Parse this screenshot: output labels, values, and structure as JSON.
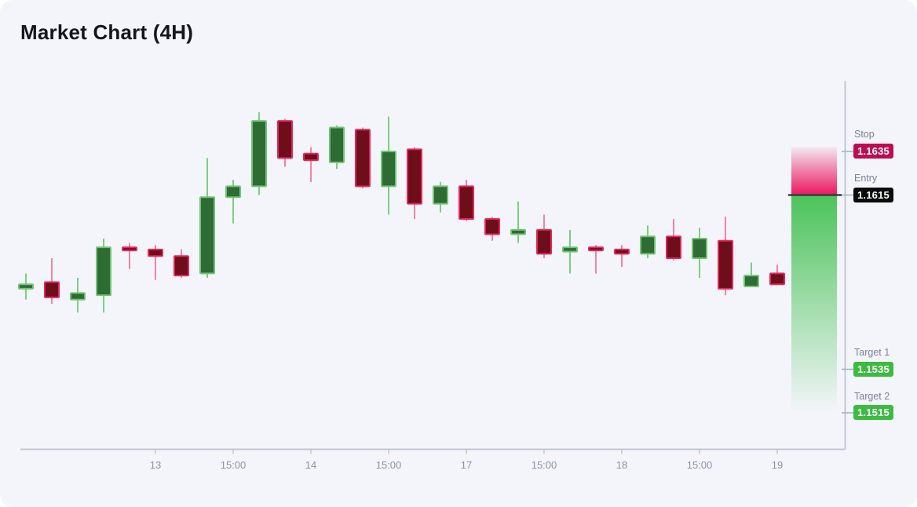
{
  "header": {
    "title": "Market Chart (4H)"
  },
  "price_levels": {
    "stop": {
      "label": "Stop",
      "value": "1.1635"
    },
    "entry": {
      "label": "Entry",
      "value": "1.1615"
    },
    "target1": {
      "label": "Target 1",
      "value": "1.1535"
    },
    "target2": {
      "label": "Target 2",
      "value": "1.1515"
    }
  },
  "colors": {
    "panel_bg": "#f3f5fa",
    "bull_fill": "#2f6b35",
    "bull_stroke": "#70c374",
    "bull_wick": "#7ccf81",
    "bear_fill": "#6e0e1a",
    "bear_stroke": "#e62559",
    "bear_wick": "#f2849f",
    "axis_line": "#c2c6d2",
    "tick_label": "#8d93a8",
    "level_label": "#7b819c",
    "stop_badge_bg": "#bd0d52",
    "entry_badge_bg": "#0b0b0c",
    "target_badge_bg": "#3cbb41",
    "zone_risk": "#ec155e",
    "zone_reward": "#4cc35a",
    "entry_line": "#3b3b42"
  },
  "chart_data": {
    "type": "candlestick",
    "title": "Market Chart (4H)",
    "timeframe": "4H",
    "grid": false,
    "price_axis_side": "right",
    "visible_price_range": [
      1.151,
      1.1665
    ],
    "levels": {
      "stop": 1.1635,
      "entry": 1.1615,
      "target1": 1.1535,
      "target2": 1.1515
    },
    "x_ticks": [
      {
        "index": 5,
        "label": "13"
      },
      {
        "index": 8,
        "label": "15:00"
      },
      {
        "index": 11,
        "label": "14"
      },
      {
        "index": 14,
        "label": "15:00"
      },
      {
        "index": 17,
        "label": "17"
      },
      {
        "index": 20,
        "label": "15:00"
      },
      {
        "index": 23,
        "label": "18"
      },
      {
        "index": 26,
        "label": "15:00"
      },
      {
        "index": 29,
        "label": "19"
      }
    ],
    "candles": [
      {
        "o": 1.1572,
        "h": 1.1579,
        "l": 1.1567,
        "c": 1.1574
      },
      {
        "o": 1.1575,
        "h": 1.1586,
        "l": 1.1565,
        "c": 1.1568
      },
      {
        "o": 1.1567,
        "h": 1.1577,
        "l": 1.1561,
        "c": 1.157
      },
      {
        "o": 1.1569,
        "h": 1.1595,
        "l": 1.1561,
        "c": 1.1591
      },
      {
        "o": 1.1591,
        "h": 1.1593,
        "l": 1.1581,
        "c": 1.159
      },
      {
        "o": 1.159,
        "h": 1.1592,
        "l": 1.1576,
        "c": 1.1587
      },
      {
        "o": 1.1587,
        "h": 1.159,
        "l": 1.1577,
        "c": 1.1578
      },
      {
        "o": 1.1579,
        "h": 1.1632,
        "l": 1.1577,
        "c": 1.1614
      },
      {
        "o": 1.1614,
        "h": 1.1622,
        "l": 1.1602,
        "c": 1.1619
      },
      {
        "o": 1.1619,
        "h": 1.1653,
        "l": 1.1615,
        "c": 1.1649
      },
      {
        "o": 1.1649,
        "h": 1.165,
        "l": 1.1628,
        "c": 1.1632
      },
      {
        "o": 1.1634,
        "h": 1.1637,
        "l": 1.1621,
        "c": 1.1631
      },
      {
        "o": 1.163,
        "h": 1.1647,
        "l": 1.1627,
        "c": 1.1646
      },
      {
        "o": 1.1645,
        "h": 1.1646,
        "l": 1.1618,
        "c": 1.1619
      },
      {
        "o": 1.1619,
        "h": 1.1651,
        "l": 1.1606,
        "c": 1.1635
      },
      {
        "o": 1.1636,
        "h": 1.1637,
        "l": 1.1604,
        "c": 1.1611
      },
      {
        "o": 1.1611,
        "h": 1.1621,
        "l": 1.1607,
        "c": 1.1619
      },
      {
        "o": 1.1619,
        "h": 1.1622,
        "l": 1.1603,
        "c": 1.1604
      },
      {
        "o": 1.1604,
        "h": 1.1605,
        "l": 1.1594,
        "c": 1.1597
      },
      {
        "o": 1.1597,
        "h": 1.1612,
        "l": 1.1593,
        "c": 1.1599
      },
      {
        "o": 1.1599,
        "h": 1.1606,
        "l": 1.1586,
        "c": 1.1588
      },
      {
        "o": 1.1589,
        "h": 1.1599,
        "l": 1.1579,
        "c": 1.1591
      },
      {
        "o": 1.1591,
        "h": 1.1592,
        "l": 1.1579,
        "c": 1.159
      },
      {
        "o": 1.159,
        "h": 1.1592,
        "l": 1.1582,
        "c": 1.1588
      },
      {
        "o": 1.1588,
        "h": 1.1601,
        "l": 1.1586,
        "c": 1.1596
      },
      {
        "o": 1.1596,
        "h": 1.1604,
        "l": 1.1585,
        "c": 1.1586
      },
      {
        "o": 1.1586,
        "h": 1.16,
        "l": 1.1577,
        "c": 1.1595
      },
      {
        "o": 1.1594,
        "h": 1.1605,
        "l": 1.1569,
        "c": 1.1572
      },
      {
        "o": 1.1573,
        "h": 1.1584,
        "l": 1.1573,
        "c": 1.1578
      },
      {
        "o": 1.1579,
        "h": 1.1583,
        "l": 1.1574,
        "c": 1.1574
      }
    ]
  }
}
